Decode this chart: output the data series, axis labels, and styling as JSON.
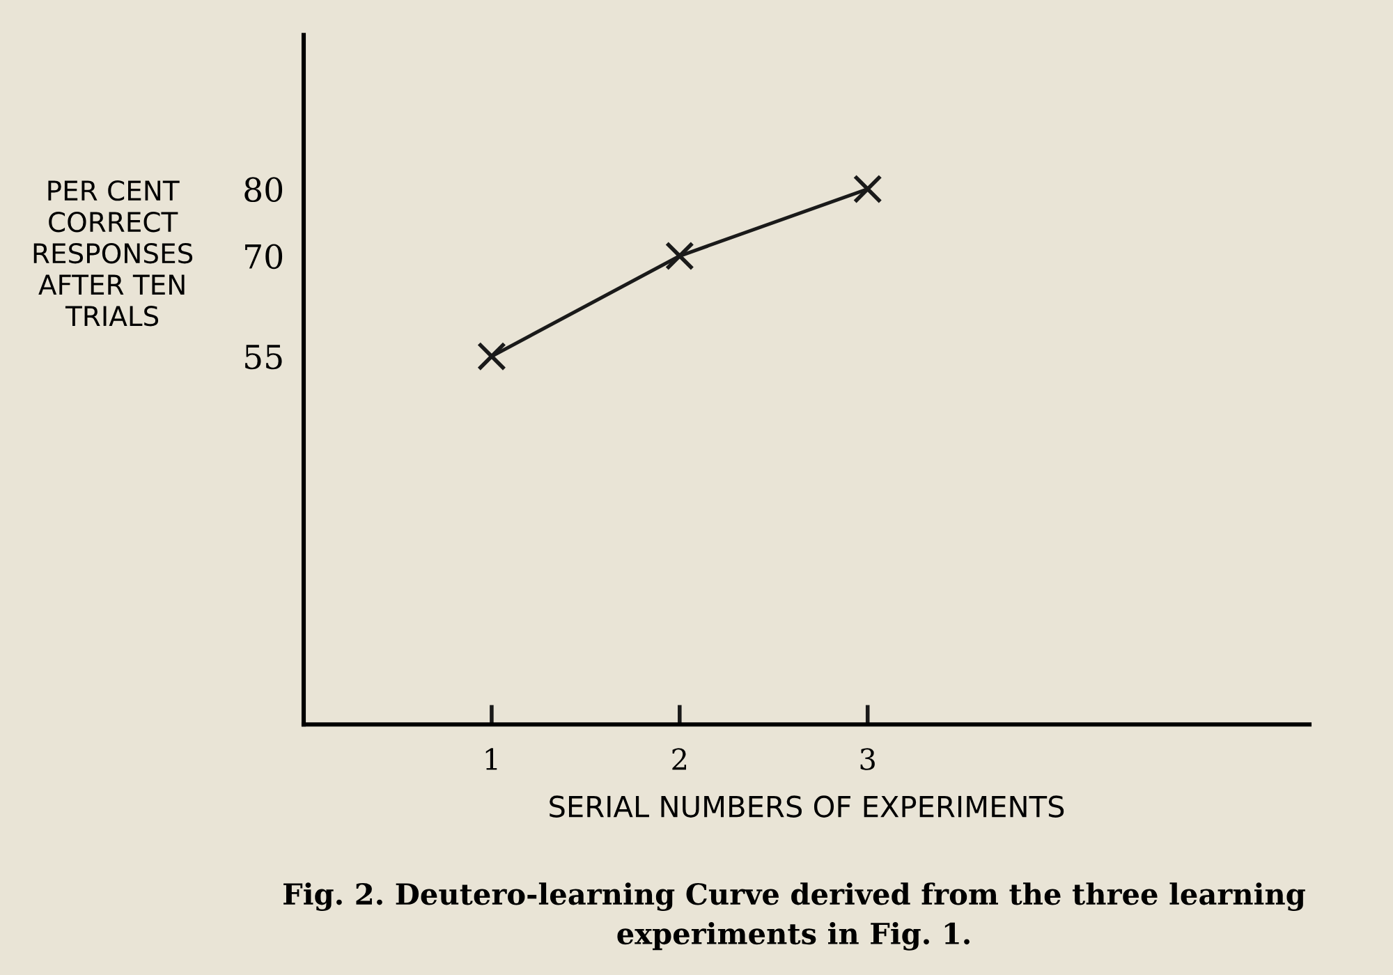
{
  "chart_data": {
    "type": "line",
    "xlabel": "SERIAL NUMBERS OF EXPERIMENTS",
    "ylabel": "PER CENT\nCORRECT\nRESPONSES\nAFTER TEN\nTRIALS",
    "x": [
      1,
      2,
      3
    ],
    "series": [
      {
        "color": "#1a1a1a",
        "values": [
          55,
          70,
          80
        ]
      }
    ],
    "xlim": [
      0,
      5.35
    ],
    "ylim": [
      0,
      103
    ],
    "xticks": [
      1,
      2,
      3
    ],
    "yticks": [
      55,
      70,
      80
    ],
    "marker": "cross",
    "line_style": "solid",
    "grid": false,
    "legend": false,
    "annotations": [
      "Fig. 2. Deutero-learning Curve derived from the three learning\nexperiments in Fig. 1."
    ]
  }
}
